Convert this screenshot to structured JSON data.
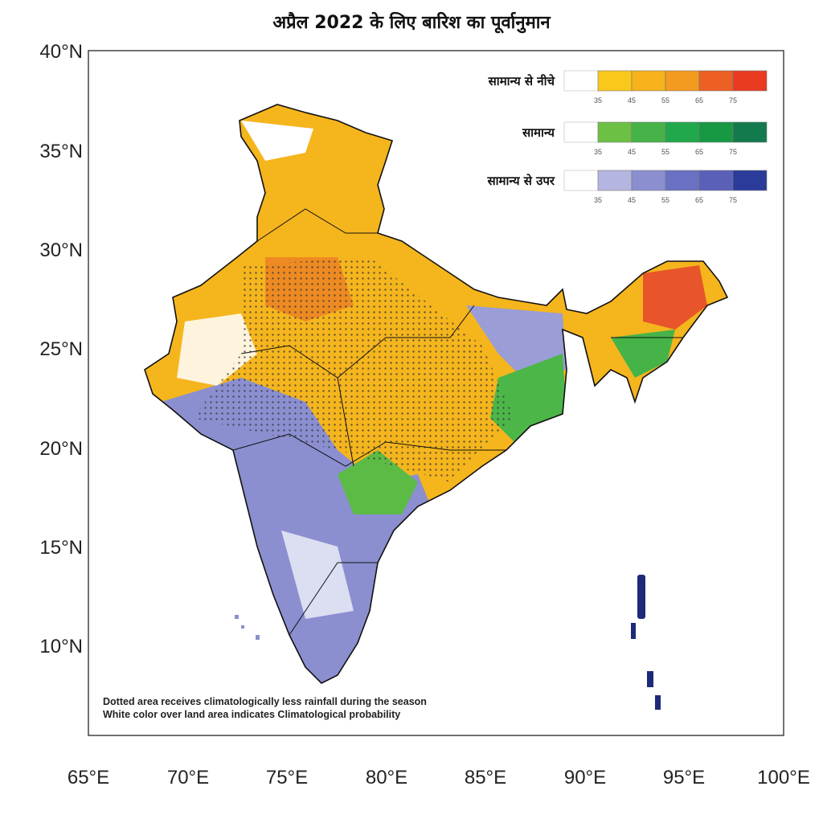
{
  "title": "अप्रैल 2022 के लिए बारिश का पूर्वानुमान",
  "axes": {
    "y_ticks": [
      "40°N",
      "35°N",
      "30°N",
      "25°N",
      "20°N",
      "15°N",
      "10°N"
    ],
    "x_ticks": [
      "65°E",
      "70°E",
      "75°E",
      "80°E",
      "85°E",
      "90°E",
      "95°E",
      "100°E"
    ]
  },
  "legend": {
    "ticks": [
      "35",
      "45",
      "55",
      "65",
      "75"
    ],
    "categories": [
      {
        "label": "सामान्य से नीचे",
        "colors": [
          "#ffffff",
          "#f9c81a",
          "#f7b21c",
          "#f39a20",
          "#ec5f25",
          "#e83b22"
        ]
      },
      {
        "label": "सामान्य",
        "colors": [
          "#ffffff",
          "#6cc043",
          "#46b348",
          "#21a84a",
          "#179843",
          "#127a4d"
        ]
      },
      {
        "label": "सामान्य से उपर",
        "colors": [
          "#ffffff",
          "#b4b5e0",
          "#8b8fd0",
          "#6a70c2",
          "#5a60b8",
          "#2a3b9a"
        ]
      }
    ]
  },
  "notes": [
    "Dotted area receives climatologically less rainfall during the season",
    "White color over land area indicates Climatological probability"
  ],
  "colors": {
    "below_normal": "#f4a81c",
    "normal": "#4cb648",
    "above_normal": "#8b8fd0",
    "dots": "#333333",
    "boundary": "#111111"
  }
}
